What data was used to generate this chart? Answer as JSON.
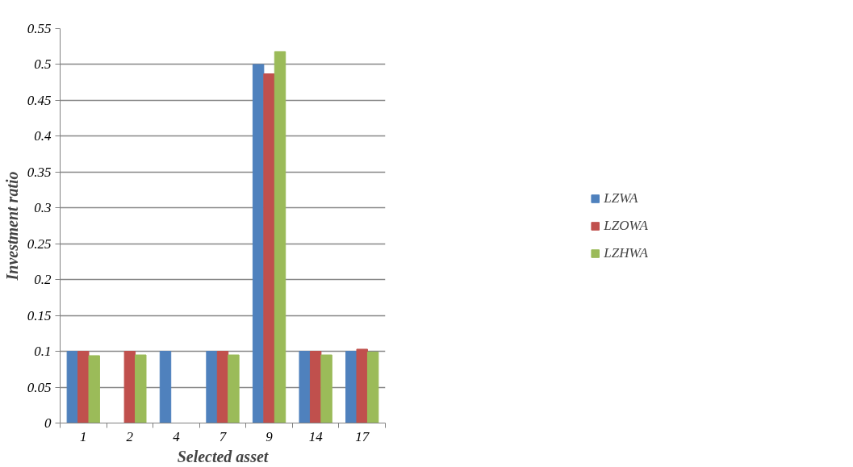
{
  "chart_data": {
    "type": "bar",
    "xlabel": "Selected asset",
    "ylabel": "Investment ratio",
    "categories": [
      "1",
      "2",
      "4",
      "7",
      "9",
      "14",
      "17"
    ],
    "series": [
      {
        "name": "LZWA",
        "color": "#4f81bd",
        "values": [
          0.1,
          0,
          0.1,
          0.1,
          0.5,
          0.1,
          0.1
        ]
      },
      {
        "name": "LZOWA",
        "color": "#c0504d",
        "values": [
          0.1,
          0.1,
          0,
          0.1,
          0.487,
          0.1,
          0.103
        ]
      },
      {
        "name": "LZHWA",
        "color": "#9bbb59",
        "values": [
          0.094,
          0.095,
          0,
          0.095,
          0.518,
          0.095,
          0.099
        ]
      }
    ],
    "ylim": [
      0,
      0.55
    ],
    "yticks": [
      0,
      {
        "value": 0.05,
        "label": "0.05"
      },
      {
        "value": 0.1,
        "label": "0.1"
      },
      {
        "value": 0.15,
        "label": "0.15"
      },
      {
        "value": 0.2,
        "label": "0.2"
      },
      {
        "value": 0.25,
        "label": "0.25"
      },
      {
        "value": 0.3,
        "label": "0.3"
      },
      {
        "value": 0.35,
        "label": "0.35"
      },
      {
        "value": 0.4,
        "label": "0.4"
      },
      {
        "value": 0.45,
        "label": "0.45"
      },
      {
        "value": 0.5,
        "label": "0.5"
      },
      {
        "value": 0.55,
        "label": "0.55"
      }
    ],
    "grid": "y",
    "legend": "right"
  }
}
